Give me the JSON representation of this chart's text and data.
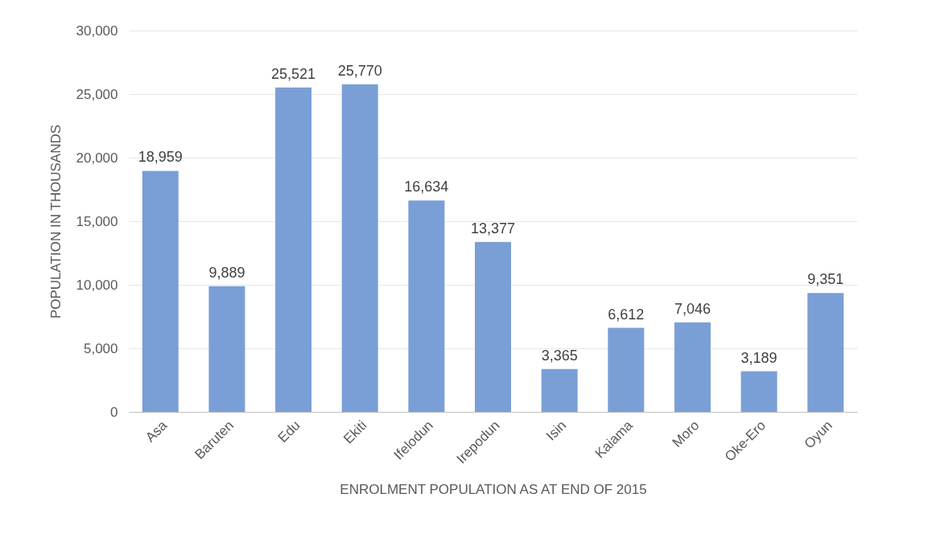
{
  "chart_data": {
    "type": "bar",
    "xlabel": "ENROLMENT POPULATION AS AT END OF 2015",
    "ylabel": "POPULATION IN THOUSANDS",
    "categories": [
      "Asa",
      "Baruten",
      "Edu",
      "Ekiti",
      "Ifelodun",
      "Irepodun",
      "Isin",
      "Kaiama",
      "Moro",
      "Oke-Ero",
      "Oyun"
    ],
    "values": [
      18959,
      9889,
      25521,
      25770,
      16634,
      13377,
      3365,
      6612,
      7046,
      3189,
      9351
    ],
    "value_labels": [
      "18,959",
      "9,889",
      "25,521",
      "25,770",
      "16,634",
      "13,377",
      "3,365",
      "6,612",
      "7,046",
      "3,189",
      "9,351"
    ],
    "color": "#7a9fd6",
    "ylim": [
      0,
      30000
    ],
    "yticks": [
      0,
      {
        "value": 5000,
        "label": "5,000"
      },
      {
        "value": 10000,
        "label": "10,000"
      },
      {
        "value": 15000,
        "label": "15,000"
      },
      {
        "value": 20000,
        "label": "20,000"
      },
      {
        "value": 25000,
        "label": "25,000"
      },
      {
        "value": 30000,
        "label": "30,000"
      }
    ],
    "grid": "y"
  }
}
